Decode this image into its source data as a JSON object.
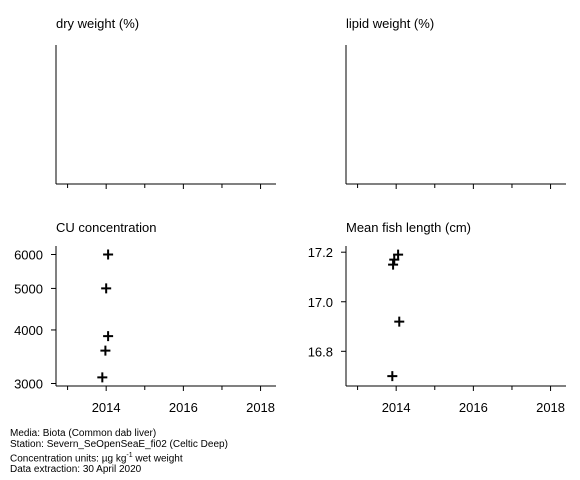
{
  "chart_data": [
    {
      "type": "scatter",
      "title": "dry weight (%)",
      "x_ticks": [
        2014,
        2016,
        2018
      ],
      "xlim": [
        2012.7,
        2018.4
      ],
      "y_ticks": [],
      "ylim": [
        0,
        1
      ],
      "points": []
    },
    {
      "type": "scatter",
      "title": "lipid weight (%)",
      "x_ticks": [
        2014,
        2016,
        2018
      ],
      "xlim": [
        2012.7,
        2018.4
      ],
      "y_ticks": [],
      "ylim": [
        0,
        1
      ],
      "points": []
    },
    {
      "type": "scatter",
      "title": "CU concentration",
      "log_y": true,
      "x_ticks": [
        2014,
        2016,
        2018
      ],
      "xlim": [
        2012.7,
        2018.4
      ],
      "y_ticks": [
        3000,
        4000,
        5000,
        6000
      ],
      "ylim": [
        2960,
        6280
      ],
      "points": [
        {
          "x": 2014.05,
          "y": 6000
        },
        {
          "x": 2014.0,
          "y": 5000
        },
        {
          "x": 2014.05,
          "y": 3870
        },
        {
          "x": 2013.98,
          "y": 3580
        },
        {
          "x": 2013.9,
          "y": 3100
        }
      ]
    },
    {
      "type": "scatter",
      "title": "Mean fish length (cm)",
      "x_ticks": [
        2014,
        2016,
        2018
      ],
      "xlim": [
        2012.7,
        2018.4
      ],
      "y_ticks": [
        16.8,
        17.0,
        17.2
      ],
      "y_tick_labels": [
        "16.8",
        "17.0",
        "17.2"
      ],
      "ylim": [
        16.66,
        17.225
      ],
      "points": [
        {
          "x": 2014.05,
          "y": 17.19
        },
        {
          "x": 2013.95,
          "y": 17.17
        },
        {
          "x": 2013.92,
          "y": 17.15
        },
        {
          "x": 2014.08,
          "y": 16.92
        },
        {
          "x": 2013.9,
          "y": 16.7
        }
      ]
    }
  ],
  "footer": {
    "media": "Media: Biota (Common dab liver)",
    "station": "Station: Severn_SeOpenSeaE_fi02 (Celtic Deep)",
    "units_prefix": "Concentration units:  µg kg",
    "units_exponent": "-1",
    "units_suffix": " wet weight",
    "extraction": "Data extraction: 30 April 2020"
  }
}
